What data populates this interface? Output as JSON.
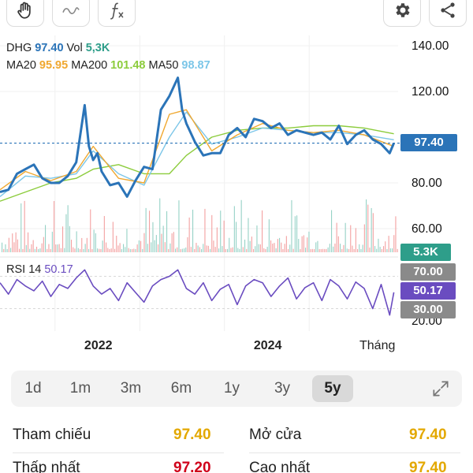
{
  "toolbar": {
    "icons": [
      "hand-icon",
      "wave-icon",
      "function-icon",
      "gear-icon",
      "share-icon"
    ]
  },
  "legend": {
    "symbol": "DHG",
    "price": "97.40",
    "vol_label": "Vol",
    "vol_value": "5,3K",
    "ma20_label": "MA20",
    "ma20_value": "95.95",
    "ma200_label": "MA200",
    "ma200_value": "101.48",
    "ma50_label": "MA50",
    "ma50_value": "98.87",
    "rsi_label": "RSI 14",
    "rsi_value": "50.17"
  },
  "colors": {
    "price": "#2b74b8",
    "ma20": "#f0a830",
    "ma200": "#8ccc3c",
    "ma50": "#7cc6e8",
    "rsi": "#6a4cc0",
    "rsi_tag": "#6a4cc0",
    "volume_tag": "#2e9e8a",
    "level_tag": "#8a8a8a",
    "up_volume": "#7cc7b8",
    "down_volume": "#f08a8a",
    "value_yellow": "#e3a800",
    "value_red": "#d0021b"
  },
  "tags": {
    "price": "97.40",
    "volume": "5.3K",
    "rsi_upper": "70.00",
    "rsi_value": "50.17",
    "rsi_lower": "30.00"
  },
  "periods": {
    "items": [
      "1d",
      "1m",
      "3m",
      "6m",
      "1y",
      "3y",
      "5y"
    ],
    "active": "5y"
  },
  "stats": {
    "ref_label": "Tham chiếu",
    "ref_value": "97.40",
    "open_label": "Mở cửa",
    "open_value": "97.40",
    "low_label": "Thấp nhất",
    "low_value": "97.20",
    "high_label": "Cao nhất",
    "high_value": "97.40"
  },
  "chart_data": [
    {
      "type": "line",
      "title": "DHG",
      "x_ticks": [
        "2022",
        "2024",
        "Tháng"
      ],
      "y_ticks": [
        "140.00",
        "120.00",
        "80.00",
        "60.00"
      ],
      "ylim": [
        50,
        142
      ],
      "x_range": [
        2020.9,
        2025.6
      ],
      "last_price": 97.4,
      "series": [
        {
          "name": "DHG",
          "x": [
            2020.9,
            2021.0,
            2021.1,
            2021.2,
            2021.3,
            2021.4,
            2021.5,
            2021.6,
            2021.7,
            2021.8,
            2021.9,
            2021.95,
            2022.0,
            2022.05,
            2022.1,
            2022.2,
            2022.3,
            2022.4,
            2022.5,
            2022.6,
            2022.7,
            2022.8,
            2022.9,
            2023.0,
            2023.05,
            2023.1,
            2023.15,
            2023.2,
            2023.3,
            2023.4,
            2023.5,
            2023.6,
            2023.7,
            2023.8,
            2023.9,
            2024.0,
            2024.1,
            2024.2,
            2024.3,
            2024.4,
            2024.5,
            2024.6,
            2024.7,
            2024.8,
            2024.9,
            2025.0,
            2025.1,
            2025.2,
            2025.3,
            2025.4,
            2025.5,
            2025.55
          ],
          "values": [
            76,
            77,
            84,
            86,
            88,
            82,
            80,
            80,
            83,
            89,
            114,
            96,
            90,
            93,
            85,
            79,
            80,
            74,
            81,
            87,
            86,
            112,
            118,
            126,
            112,
            106,
            102,
            98,
            92,
            93,
            93,
            101,
            104,
            100,
            108,
            107,
            104,
            106,
            101,
            103,
            102,
            101,
            102,
            99,
            105,
            97,
            101,
            103,
            99,
            97,
            93,
            97.4
          ]
        },
        {
          "name": "MA20",
          "x": [
            2020.9,
            2021.2,
            2021.5,
            2021.8,
            2022.0,
            2022.3,
            2022.6,
            2022.9,
            2023.1,
            2023.4,
            2023.7,
            2024.0,
            2024.3,
            2024.6,
            2024.9,
            2025.2,
            2025.55
          ],
          "values": [
            77,
            85,
            81,
            85,
            96,
            82,
            80,
            110,
            112,
            94,
            101,
            106,
            103,
            102,
            103,
            101,
            95.95
          ]
        },
        {
          "name": "MA50",
          "x": [
            2020.9,
            2021.2,
            2021.5,
            2021.8,
            2022.0,
            2022.3,
            2022.6,
            2022.9,
            2023.1,
            2023.4,
            2023.7,
            2024.0,
            2024.3,
            2024.6,
            2024.9,
            2025.2,
            2025.55
          ],
          "values": [
            74,
            83,
            82,
            84,
            94,
            84,
            79,
            100,
            111,
            97,
            100,
            104,
            103,
            102,
            102,
            101,
            98.87
          ]
        },
        {
          "name": "MA200",
          "x": [
            2020.9,
            2021.2,
            2021.5,
            2021.8,
            2022.0,
            2022.3,
            2022.6,
            2022.9,
            2023.1,
            2023.4,
            2023.7,
            2024.0,
            2024.3,
            2024.6,
            2024.9,
            2025.2,
            2025.55
          ],
          "values": [
            72,
            76,
            80,
            82,
            86,
            88,
            84,
            84,
            92,
            100,
            103,
            104,
            104,
            105,
            105,
            104,
            101.48
          ]
        }
      ]
    },
    {
      "type": "line",
      "title": "RSI 14",
      "ylim": [
        10,
        90
      ],
      "reference_lines": [
        70,
        30
      ],
      "y_ticks": [
        "20.00"
      ],
      "series": [
        {
          "name": "RSI 14",
          "x": [
            2020.9,
            2021.0,
            2021.1,
            2021.2,
            2021.3,
            2021.4,
            2021.5,
            2021.6,
            2021.7,
            2021.8,
            2021.9,
            2022.0,
            2022.1,
            2022.2,
            2022.3,
            2022.4,
            2022.5,
            2022.6,
            2022.7,
            2022.8,
            2022.9,
            2023.0,
            2023.1,
            2023.2,
            2023.3,
            2023.4,
            2023.5,
            2023.6,
            2023.7,
            2023.8,
            2023.9,
            2024.0,
            2024.1,
            2024.2,
            2024.3,
            2024.4,
            2024.5,
            2024.6,
            2024.7,
            2024.8,
            2024.9,
            2025.0,
            2025.1,
            2025.2,
            2025.3,
            2025.4,
            2025.5,
            2025.55
          ],
          "values": [
            62,
            48,
            66,
            58,
            52,
            64,
            45,
            60,
            55,
            68,
            78,
            58,
            48,
            55,
            40,
            62,
            50,
            38,
            58,
            66,
            70,
            78,
            55,
            48,
            62,
            40,
            54,
            60,
            35,
            58,
            66,
            62,
            45,
            58,
            68,
            42,
            56,
            62,
            40,
            66,
            58,
            42,
            63,
            55,
            30,
            60,
            22,
            50.17
          ]
        }
      ]
    }
  ]
}
